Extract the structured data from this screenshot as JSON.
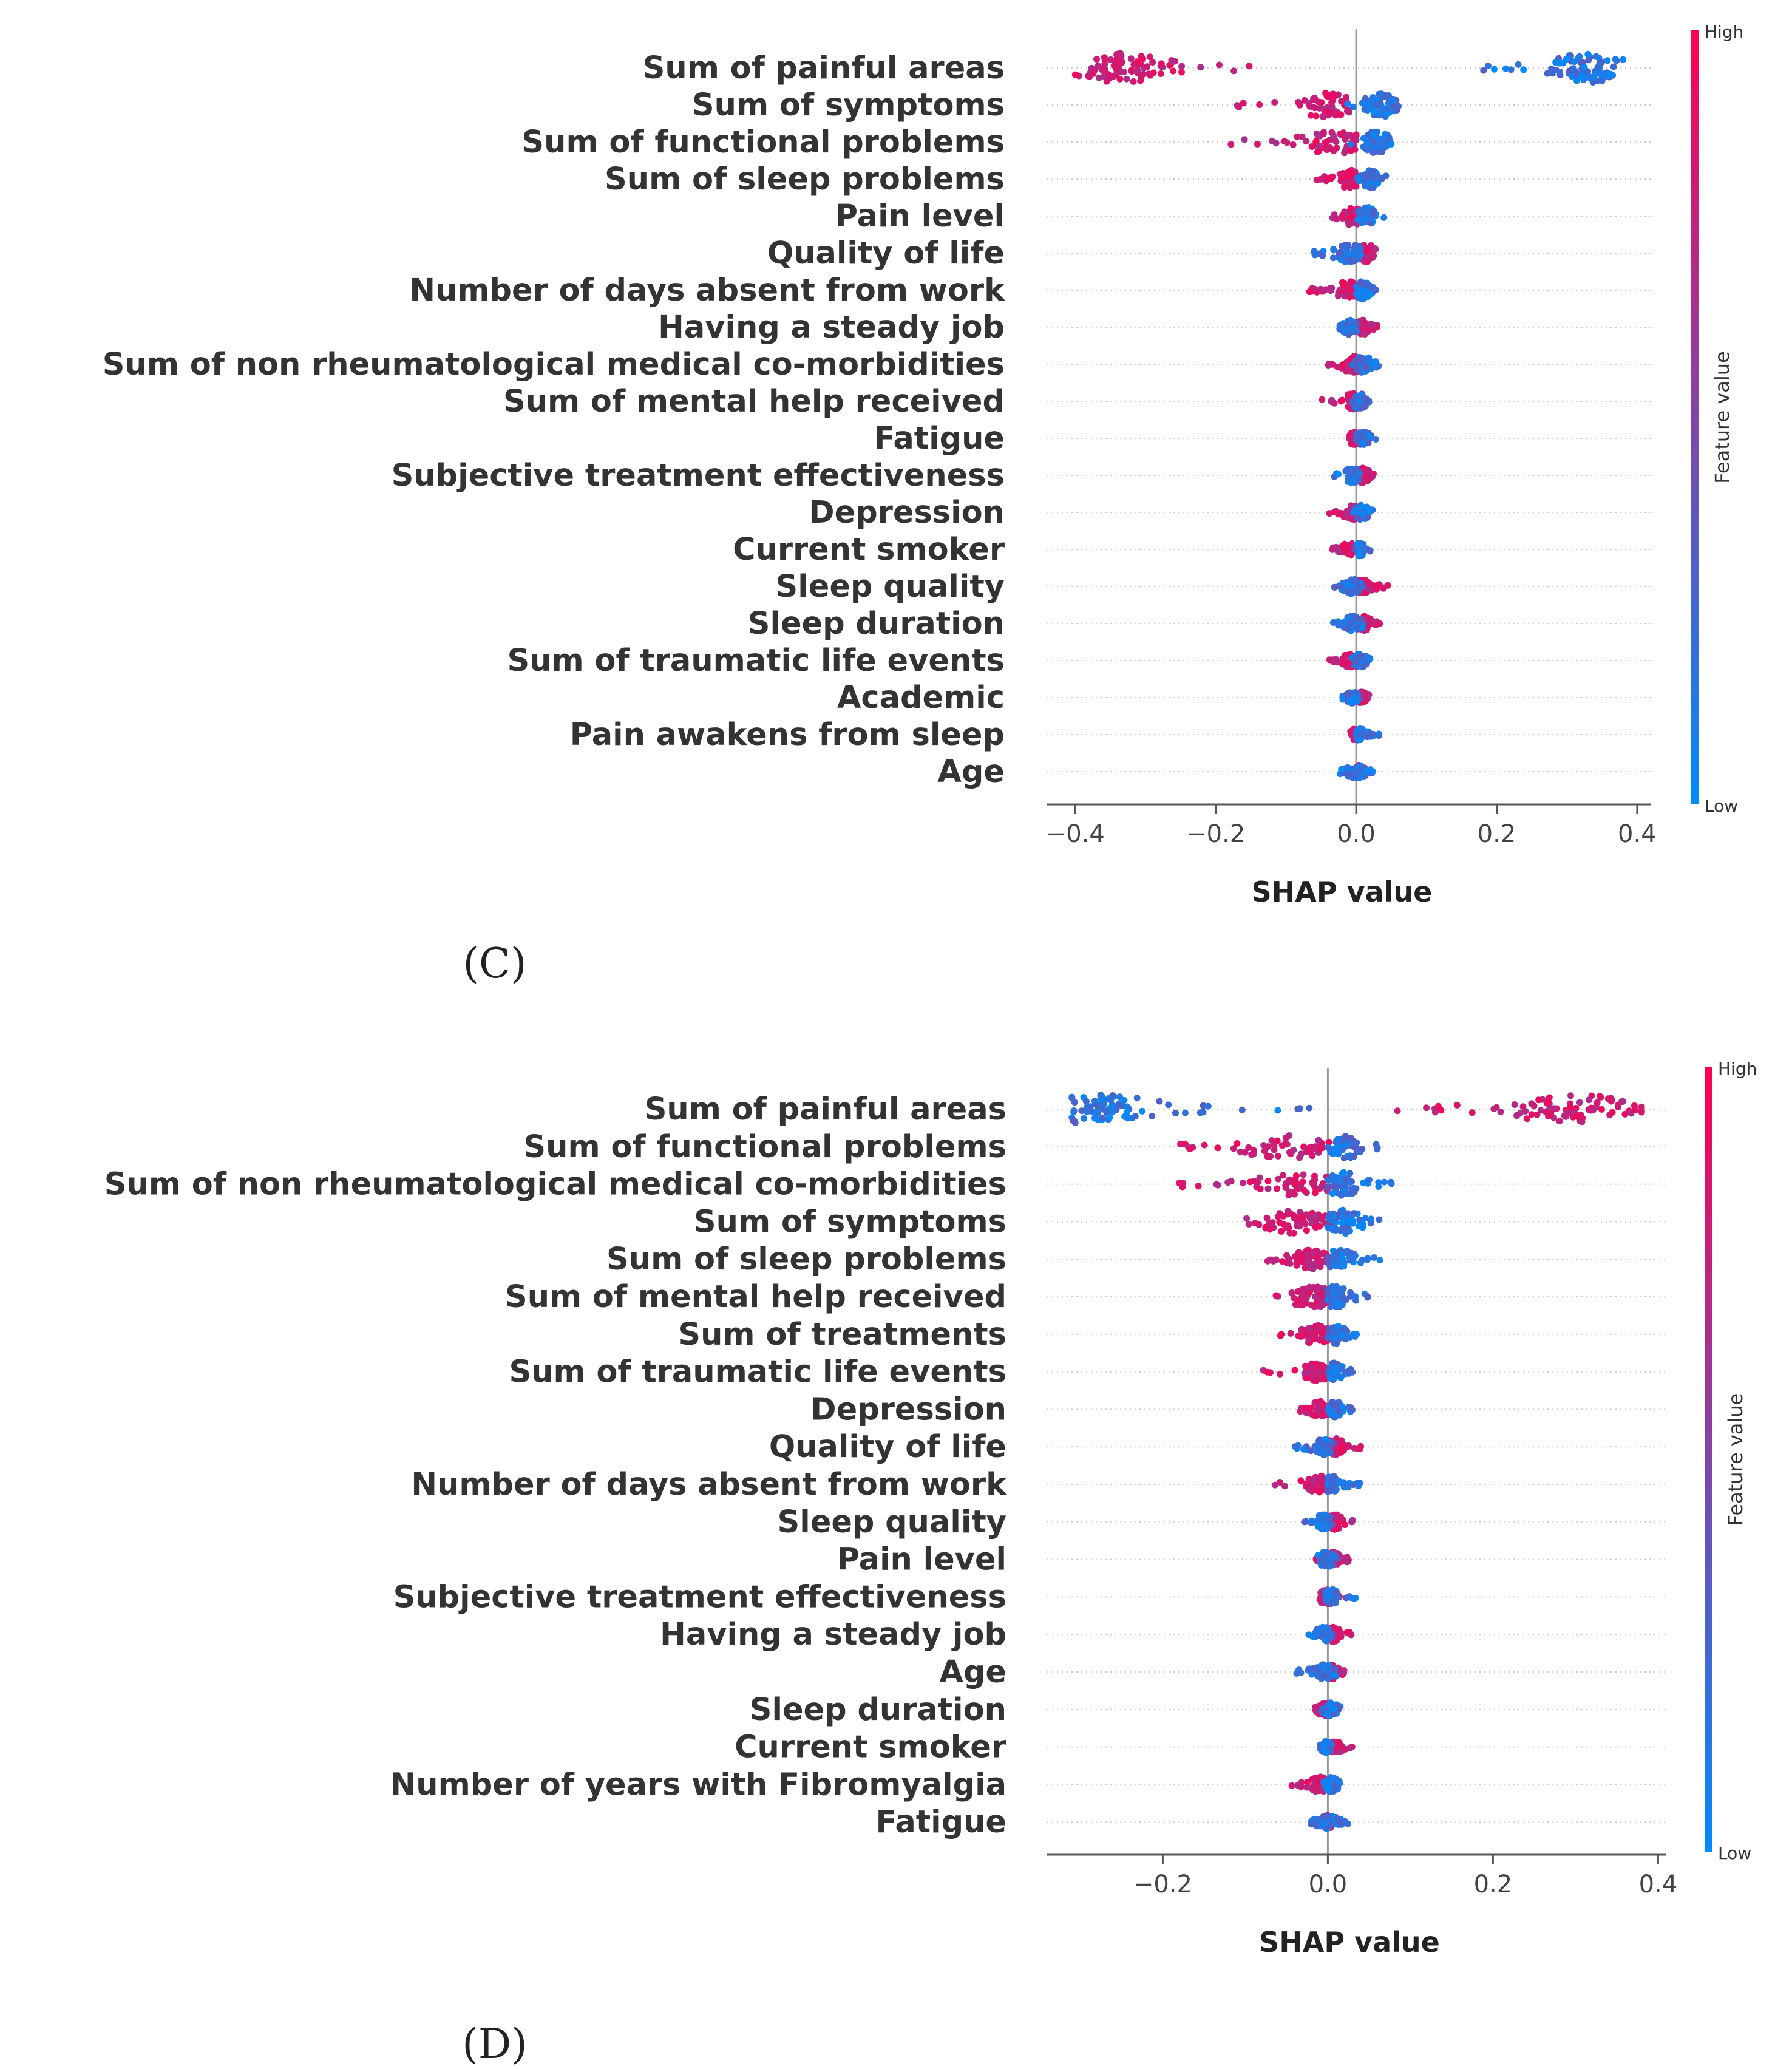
{
  "chart_data": [
    {
      "type": "scatter",
      "chart_kind": "shap beeswarm summary plot",
      "panel_label": "(C)",
      "xlabel": "SHAP value",
      "xlim": [
        -0.44,
        0.42
      ],
      "xticks": [
        -0.4,
        -0.2,
        0.0,
        0.2,
        0.4
      ],
      "xtick_labels": [
        "−0.4",
        "−0.2",
        "0.0",
        "0.2",
        "0.4"
      ],
      "colorbar": {
        "label": "Feature value",
        "high": "High",
        "low": "Low",
        "high_color": "#ff0052",
        "low_color": "#008bfb"
      },
      "features": [
        {
          "name": "Sum of painful areas",
          "high_min": -0.4,
          "high_max": -0.15,
          "high_center": -0.33,
          "low_min": 0.18,
          "low_max": 0.38,
          "low_center": 0.33,
          "bimodal": true,
          "width": 0.9
        },
        {
          "name": "Sum of symptoms",
          "high_min": -0.18,
          "high_max": 0.0,
          "high_center": -0.04,
          "low_min": -0.02,
          "low_max": 0.06,
          "low_center": 0.035,
          "width": 0.75
        },
        {
          "name": "Sum of functional problems",
          "high_min": -0.21,
          "high_max": 0.0,
          "high_center": -0.03,
          "low_min": -0.01,
          "low_max": 0.05,
          "low_center": 0.03,
          "width": 0.7
        },
        {
          "name": "Sum of sleep problems",
          "high_min": -0.06,
          "high_max": 0.0,
          "high_center": -0.01,
          "low_min": 0.0,
          "low_max": 0.045,
          "low_center": 0.02,
          "width": 0.6
        },
        {
          "name": "Pain level",
          "high_min": -0.04,
          "high_max": 0.01,
          "high_center": -0.005,
          "low_min": 0.0,
          "low_max": 0.045,
          "low_center": 0.015,
          "width": 0.55
        },
        {
          "name": "Quality of life ",
          "high_min": 0.0,
          "high_max": 0.035,
          "high_center": 0.015,
          "low_min": -0.07,
          "low_max": 0.01,
          "low_center": -0.01,
          "width": 0.55
        },
        {
          "name": "Number of days absent from work",
          "high_min": -0.07,
          "high_max": 0.0,
          "high_center": -0.01,
          "low_min": 0.0,
          "low_max": 0.03,
          "low_center": 0.01,
          "width": 0.55
        },
        {
          "name": "Having a steady job",
          "high_min": 0.0,
          "high_max": 0.03,
          "high_center": 0.01,
          "low_min": -0.025,
          "low_max": 0.005,
          "low_center": -0.01,
          "width": 0.45
        },
        {
          "name": "Sum of non rheumatological medical co-morbidities",
          "high_min": -0.06,
          "high_max": 0.01,
          "high_center": -0.005,
          "low_min": -0.005,
          "low_max": 0.035,
          "low_center": 0.01,
          "width": 0.5
        },
        {
          "name": "Sum of mental help received",
          "high_min": -0.05,
          "high_max": 0.0,
          "high_center": -0.005,
          "low_min": -0.005,
          "low_max": 0.02,
          "low_center": 0.005,
          "width": 0.5
        },
        {
          "name": "Fatigue ",
          "high_min": -0.01,
          "high_max": 0.005,
          "high_center": -0.003,
          "low_min": 0.0,
          "low_max": 0.035,
          "low_center": 0.01,
          "width": 0.4
        },
        {
          "name": "Subjective treatment effectiveness",
          "high_min": -0.005,
          "high_max": 0.03,
          "high_center": 0.008,
          "low_min": -0.035,
          "low_max": 0.005,
          "low_center": -0.005,
          "width": 0.45
        },
        {
          "name": "Depression",
          "high_min": -0.04,
          "high_max": 0.005,
          "high_center": -0.005,
          "low_min": -0.005,
          "low_max": 0.025,
          "low_center": 0.008,
          "width": 0.45
        },
        {
          "name": "Current smoker",
          "high_min": -0.035,
          "high_max": 0.0,
          "high_center": -0.01,
          "low_min": 0.0,
          "low_max": 0.02,
          "low_center": 0.005,
          "width": 0.4
        },
        {
          "name": "Sleep quality ",
          "high_min": 0.0,
          "high_max": 0.045,
          "high_center": 0.01,
          "low_min": -0.035,
          "low_max": 0.01,
          "low_center": -0.005,
          "width": 0.45
        },
        {
          "name": "Sleep duration",
          "high_min": -0.005,
          "high_max": 0.035,
          "high_center": 0.01,
          "low_min": -0.035,
          "low_max": 0.01,
          "low_center": -0.005,
          "width": 0.45
        },
        {
          "name": "Sum of traumatic life events",
          "high_min": -0.045,
          "high_max": 0.005,
          "high_center": -0.005,
          "low_min": -0.005,
          "low_max": 0.02,
          "low_center": 0.005,
          "width": 0.45
        },
        {
          "name": "Academic",
          "high_min": 0.0,
          "high_max": 0.02,
          "high_center": 0.008,
          "low_min": -0.02,
          "low_max": 0.005,
          "low_center": -0.005,
          "width": 0.35
        },
        {
          "name": "Pain awakens from sleep",
          "high_min": -0.01,
          "high_max": 0.005,
          "high_center": -0.002,
          "low_min": 0.0,
          "low_max": 0.035,
          "low_center": 0.005,
          "width": 0.35
        },
        {
          "name": "Age",
          "high_min": -0.015,
          "high_max": 0.02,
          "high_center": 0.002,
          "low_min": -0.025,
          "low_max": 0.025,
          "low_center": 0.0,
          "width": 0.4
        }
      ]
    },
    {
      "type": "scatter",
      "chart_kind": "shap beeswarm summary plot",
      "panel_label": "(D)",
      "xlabel": "SHAP value",
      "xlim": [
        -0.34,
        0.41
      ],
      "xticks": [
        -0.2,
        0.0,
        0.2,
        0.4
      ],
      "xtick_labels": [
        "−0.2",
        "0.0",
        "0.2",
        "0.4"
      ],
      "colorbar": {
        "label": "Feature value",
        "high": "High",
        "low": "Low",
        "high_color": "#ff0052",
        "low_color": "#008bfb"
      },
      "features": [
        {
          "name": "Sum of painful areas",
          "high_min": 0.06,
          "high_max": 0.38,
          "high_center": 0.3,
          "low_min": -0.31,
          "low_max": -0.02,
          "low_center": -0.28,
          "bimodal": true,
          "width": 0.9
        },
        {
          "name": "Sum of functional problems",
          "high_min": -0.2,
          "high_max": 0.01,
          "high_center": -0.05,
          "low_min": 0.0,
          "low_max": 0.08,
          "low_center": 0.02,
          "width": 0.7
        },
        {
          "name": "Sum of non rheumatological medical co-morbidities",
          "high_min": -0.18,
          "high_max": 0.01,
          "high_center": -0.04,
          "low_min": 0.0,
          "low_max": 0.08,
          "low_center": 0.02,
          "width": 0.7
        },
        {
          "name": "Sum of symptoms",
          "high_min": -0.13,
          "high_max": 0.01,
          "high_center": -0.04,
          "low_min": 0.0,
          "low_max": 0.075,
          "low_center": 0.02,
          "width": 0.7
        },
        {
          "name": "Sum of sleep problems",
          "high_min": -0.08,
          "high_max": 0.0,
          "high_center": -0.02,
          "low_min": 0.0,
          "low_max": 0.065,
          "low_center": 0.015,
          "width": 0.6
        },
        {
          "name": "Sum of mental help received",
          "high_min": -0.095,
          "high_max": 0.0,
          "high_center": -0.02,
          "low_min": 0.0,
          "low_max": 0.05,
          "low_center": 0.01,
          "width": 0.65
        },
        {
          "name": "Sum of treatments",
          "high_min": -0.07,
          "high_max": 0.005,
          "high_center": -0.015,
          "low_min": 0.0,
          "low_max": 0.035,
          "low_center": 0.01,
          "width": 0.55
        },
        {
          "name": "Sum of traumatic life events",
          "high_min": -0.08,
          "high_max": 0.0,
          "high_center": -0.015,
          "low_min": 0.0,
          "low_max": 0.03,
          "low_center": 0.008,
          "width": 0.55
        },
        {
          "name": "Depression",
          "high_min": -0.04,
          "high_max": 0.01,
          "high_center": -0.008,
          "low_min": 0.0,
          "low_max": 0.03,
          "low_center": 0.008,
          "width": 0.5
        },
        {
          "name": "Quality of life ",
          "high_min": 0.0,
          "high_max": 0.04,
          "high_center": 0.01,
          "low_min": -0.04,
          "low_max": 0.005,
          "low_center": -0.005,
          "width": 0.5
        },
        {
          "name": "Number of days absent from work",
          "high_min": -0.065,
          "high_max": 0.005,
          "high_center": -0.01,
          "low_min": 0.0,
          "low_max": 0.04,
          "low_center": 0.005,
          "width": 0.5
        },
        {
          "name": "Sleep quality ",
          "high_min": 0.0,
          "high_max": 0.035,
          "high_center": 0.008,
          "low_min": -0.03,
          "low_max": 0.005,
          "low_center": -0.005,
          "width": 0.45
        },
        {
          "name": "Pain level",
          "high_min": -0.015,
          "high_max": 0.025,
          "high_center": 0.005,
          "low_min": -0.015,
          "low_max": 0.02,
          "low_center": -0.002,
          "width": 0.45
        },
        {
          "name": "Subjective treatment effectiveness",
          "high_min": -0.01,
          "high_max": 0.015,
          "high_center": -0.002,
          "low_min": -0.005,
          "low_max": 0.035,
          "low_center": 0.005,
          "width": 0.45
        },
        {
          "name": "Having a steady job",
          "high_min": -0.005,
          "high_max": 0.03,
          "high_center": 0.005,
          "low_min": -0.025,
          "low_max": 0.005,
          "low_center": -0.005,
          "width": 0.45
        },
        {
          "name": "Age",
          "high_min": -0.01,
          "high_max": 0.02,
          "high_center": 0.004,
          "low_min": -0.04,
          "low_max": 0.01,
          "low_center": -0.005,
          "width": 0.45
        },
        {
          "name": "Sleep duration",
          "high_min": -0.015,
          "high_max": 0.01,
          "high_center": -0.003,
          "low_min": -0.01,
          "low_max": 0.015,
          "low_center": 0.004,
          "width": 0.4
        },
        {
          "name": "Current smoker",
          "high_min": 0.0,
          "high_max": 0.03,
          "high_center": 0.01,
          "low_min": -0.01,
          "low_max": 0.005,
          "low_center": -0.002,
          "width": 0.35
        },
        {
          "name": "Number of years with Fibromyalgia",
          "high_min": -0.045,
          "high_max": 0.0,
          "high_center": -0.01,
          "low_min": -0.005,
          "low_max": 0.015,
          "low_center": 0.004,
          "width": 0.45
        },
        {
          "name": "Fatigue ",
          "high_min": -0.01,
          "high_max": 0.01,
          "high_center": 0.0,
          "low_min": -0.02,
          "low_max": 0.025,
          "low_center": 0.0,
          "width": 0.4
        }
      ]
    }
  ]
}
